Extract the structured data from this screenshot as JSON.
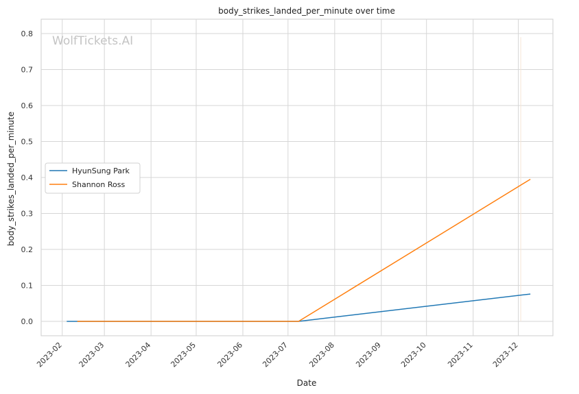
{
  "chart_data": {
    "type": "line",
    "title": "body_strikes_landed_per_minute over time",
    "xlabel": "Date",
    "ylabel": "body_strikes_landed_per_minute",
    "watermark": "WolfTickets.AI",
    "grid": true,
    "legend_position": "center-left",
    "xlim": [
      "2023-01-18",
      "2023-12-24"
    ],
    "ylim": [
      -0.04,
      0.84
    ],
    "x_ticks": [
      "2023-02",
      "2023-03",
      "2023-04",
      "2023-05",
      "2023-06",
      "2023-07",
      "2023-08",
      "2023-09",
      "2023-10",
      "2023-11",
      "2023-12"
    ],
    "y_ticks": [
      "0.0",
      "0.1",
      "0.2",
      "0.3",
      "0.4",
      "0.5",
      "0.6",
      "0.7",
      "0.8"
    ],
    "series": [
      {
        "name": "HyunSung Park",
        "color": "#1f77b4",
        "x": [
          "2023-02-04",
          "2023-07-08",
          "2023-12-09"
        ],
        "y": [
          0.0,
          0.0,
          0.076
        ]
      },
      {
        "name": "Shannon Ross",
        "color": "#ff7f0e",
        "x": [
          "2023-02-11",
          "2023-07-08",
          "2023-12-09"
        ],
        "y": [
          0.0,
          0.0,
          0.395
        ]
      }
    ]
  }
}
